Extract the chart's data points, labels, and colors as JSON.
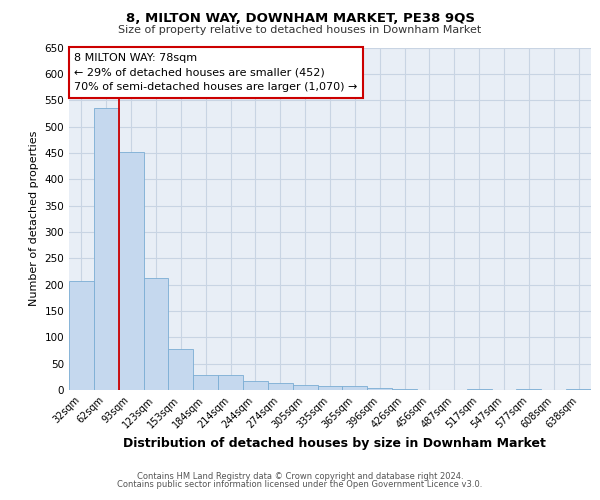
{
  "title": "8, MILTON WAY, DOWNHAM MARKET, PE38 9QS",
  "subtitle": "Size of property relative to detached houses in Downham Market",
  "xlabel_bottom": "Distribution of detached houses by size in Downham Market",
  "ylabel": "Number of detached properties",
  "footer_line1": "Contains HM Land Registry data © Crown copyright and database right 2024.",
  "footer_line2": "Contains public sector information licensed under the Open Government Licence v3.0.",
  "categories": [
    "32sqm",
    "62sqm",
    "93sqm",
    "123sqm",
    "153sqm",
    "184sqm",
    "214sqm",
    "244sqm",
    "274sqm",
    "305sqm",
    "335sqm",
    "365sqm",
    "396sqm",
    "426sqm",
    "456sqm",
    "487sqm",
    "517sqm",
    "547sqm",
    "577sqm",
    "608sqm",
    "638sqm"
  ],
  "values": [
    207,
    535,
    452,
    213,
    78,
    28,
    28,
    17,
    13,
    10,
    8,
    7,
    3,
    2,
    0,
    0,
    2,
    0,
    2,
    0,
    2
  ],
  "bar_color": "#c5d8ee",
  "bar_edge_color": "#7badd4",
  "grid_color": "#c8d4e3",
  "background_color": "#e8eef6",
  "annotation_text": "8 MILTON WAY: 78sqm\n← 29% of detached houses are smaller (452)\n70% of semi-detached houses are larger (1,070) →",
  "annotation_box_edge": "#cc0000",
  "annotation_box_fill": "#ffffff",
  "red_line_x": 1.5,
  "ylim": [
    0,
    650
  ],
  "yticks": [
    0,
    50,
    100,
    150,
    200,
    250,
    300,
    350,
    400,
    450,
    500,
    550,
    600,
    650
  ]
}
